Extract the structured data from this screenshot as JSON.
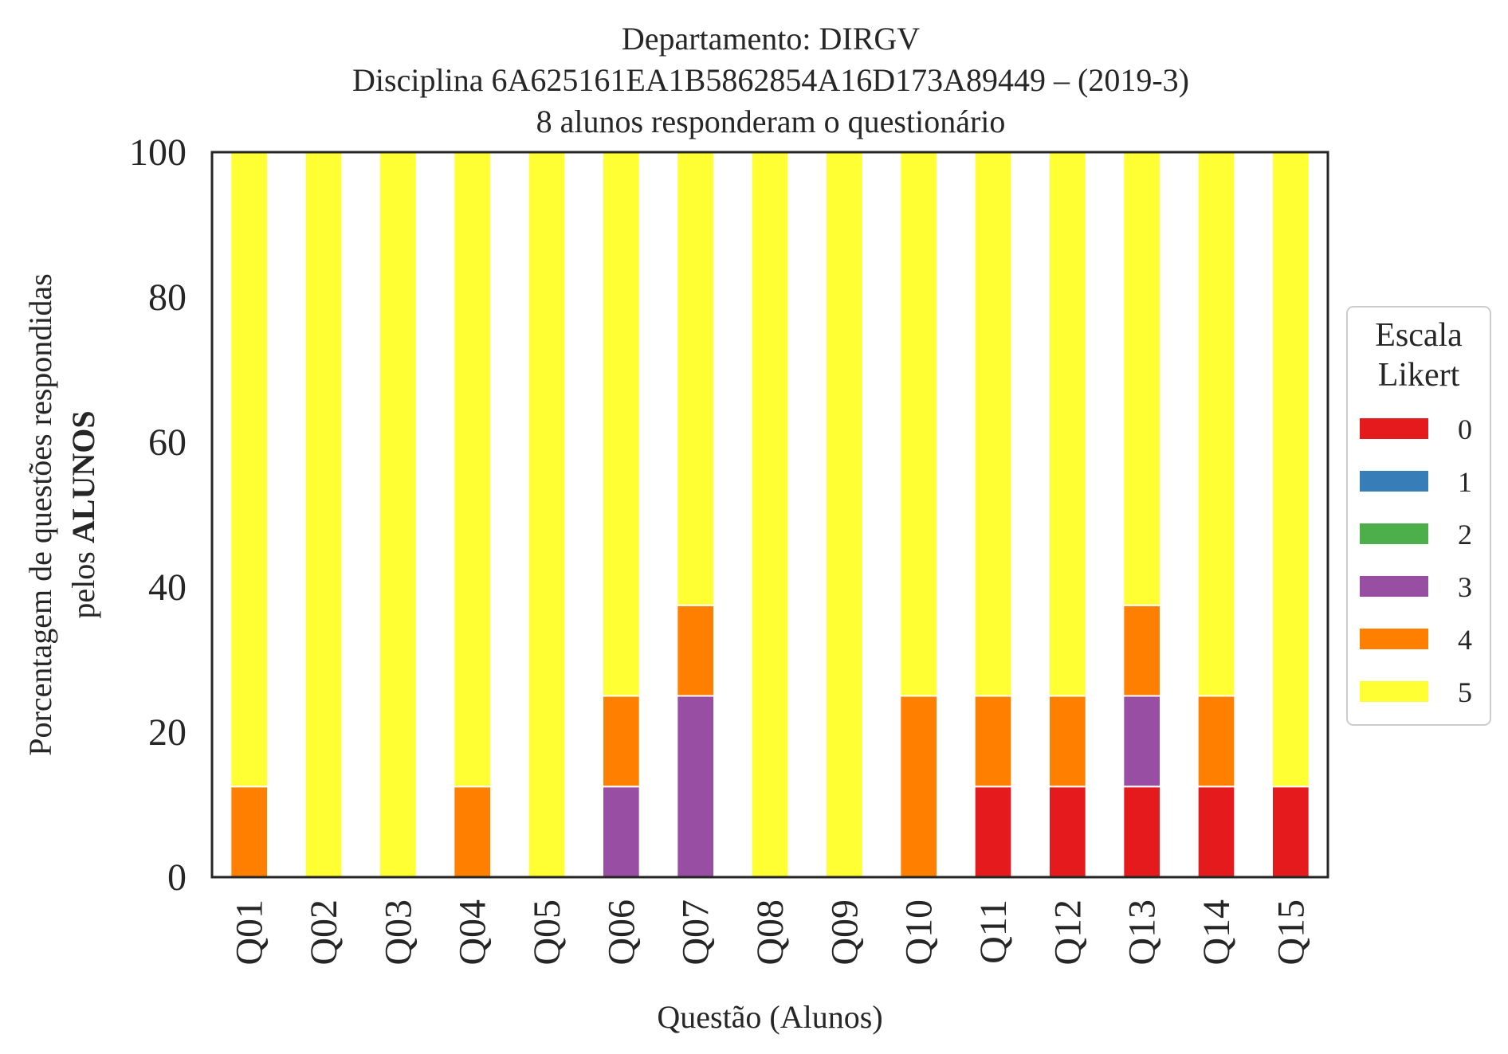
{
  "chart_data": {
    "type": "bar",
    "stacked": true,
    "title_lines": [
      "Departamento: DIRGV",
      "Disciplina 6A625161EA1B5862854A16D173A89449 – (2019-3)",
      "8 alunos responderam o questionário"
    ],
    "xlabel": "Questão (Alunos)",
    "ylabel_line1": "Porcentagem de questões respondidas",
    "ylabel_line2_prefix": "pelos ",
    "ylabel_line2_bold": "ALUNOS",
    "ylim": [
      0,
      100
    ],
    "yticks": [
      "0",
      "20",
      "40",
      "60",
      "80",
      "100"
    ],
    "ytick_values": [
      0,
      20,
      40,
      60,
      80,
      100
    ],
    "categories": [
      "Q01",
      "Q02",
      "Q03",
      "Q04",
      "Q05",
      "Q06",
      "Q07",
      "Q08",
      "Q09",
      "Q10",
      "Q11",
      "Q12",
      "Q13",
      "Q14",
      "Q15"
    ],
    "series": [
      {
        "name": "0",
        "color": "#e41a1c",
        "values": [
          0,
          0,
          0,
          0,
          0,
          0,
          0,
          0,
          0,
          0,
          12.5,
          12.5,
          12.5,
          12.5,
          12.5
        ]
      },
      {
        "name": "1",
        "color": "#377eb8",
        "values": [
          0,
          0,
          0,
          0,
          0,
          0,
          0,
          0,
          0,
          0,
          0,
          0,
          0,
          0,
          0
        ]
      },
      {
        "name": "2",
        "color": "#4daf4a",
        "values": [
          0,
          0,
          0,
          0,
          0,
          0,
          0,
          0,
          0,
          0,
          0,
          0,
          0,
          0,
          0
        ]
      },
      {
        "name": "3",
        "color": "#984ea3",
        "values": [
          0,
          0,
          0,
          0,
          0,
          12.5,
          25,
          0,
          0,
          0,
          0,
          0,
          12.5,
          0,
          0
        ]
      },
      {
        "name": "4",
        "color": "#ff7f00",
        "values": [
          12.5,
          0,
          0,
          12.5,
          0,
          12.5,
          12.5,
          0,
          0,
          25,
          12.5,
          12.5,
          12.5,
          12.5,
          0
        ]
      },
      {
        "name": "5",
        "color": "#ffff33",
        "values": [
          87.5,
          100,
          100,
          87.5,
          100,
          75,
          62.5,
          100,
          100,
          75,
          75,
          75,
          62.5,
          75,
          87.5
        ]
      }
    ],
    "legend": {
      "title_lines": [
        "Escala",
        "Likert"
      ],
      "placement": "right"
    },
    "grid": false
  }
}
